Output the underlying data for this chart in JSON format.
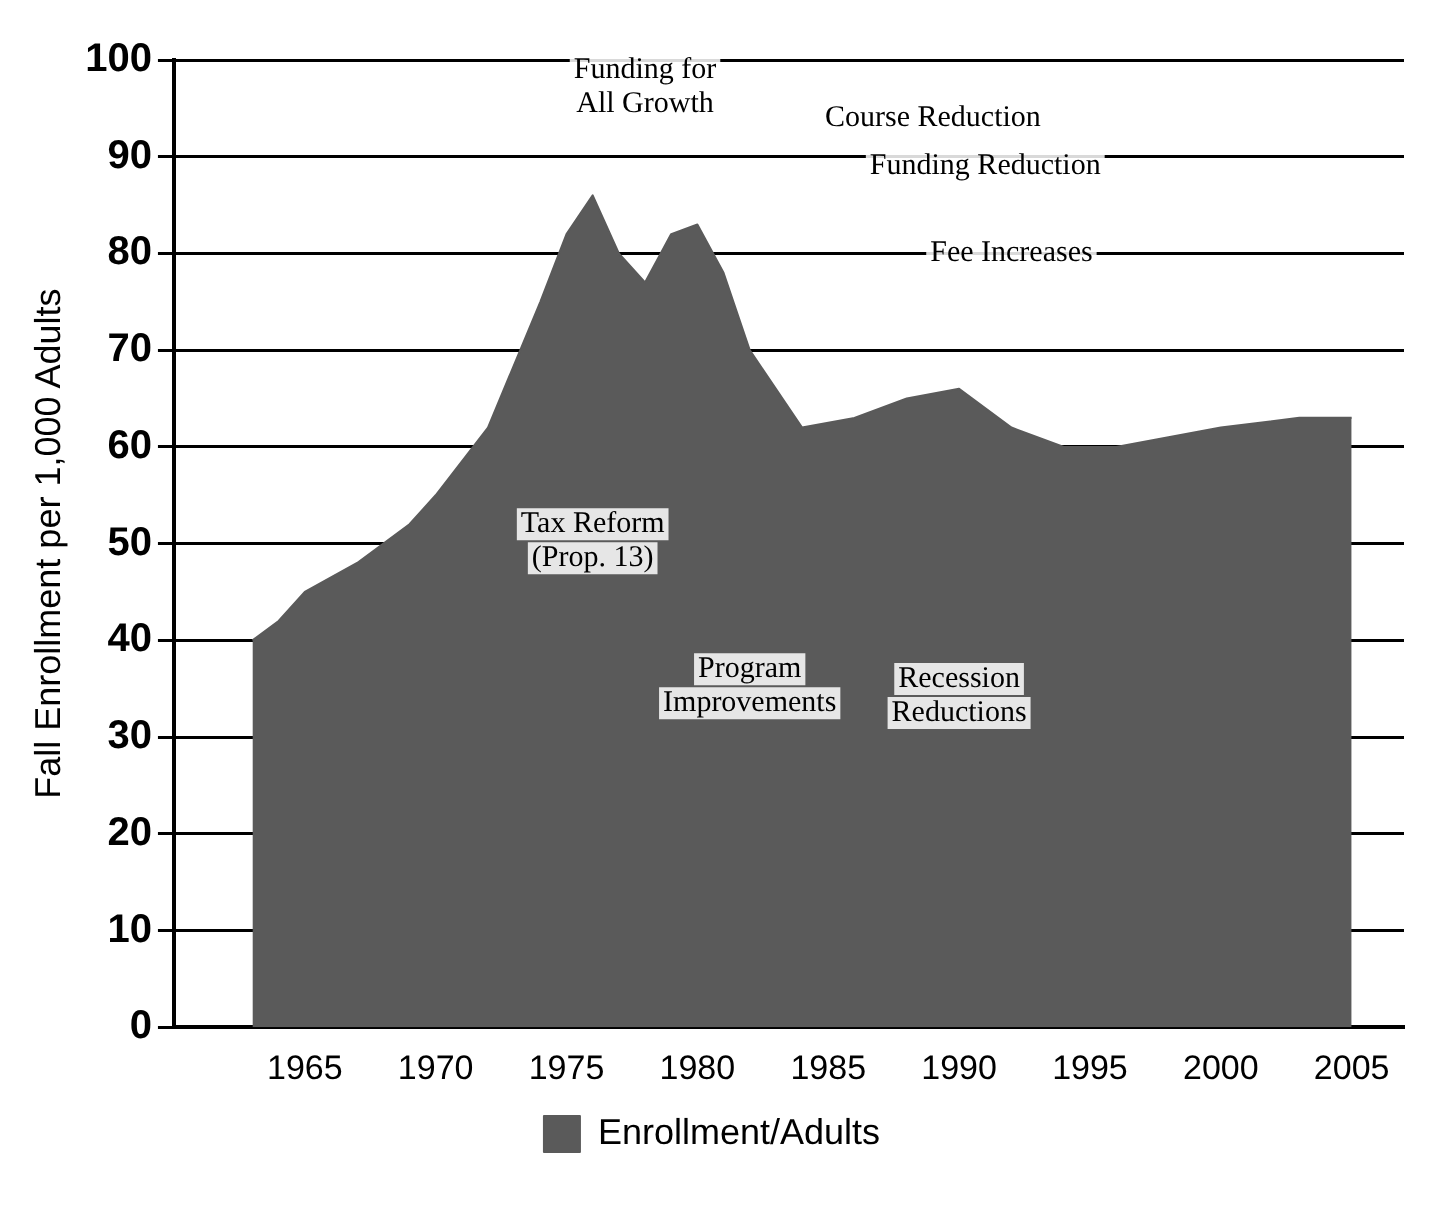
{
  "chart_data": {
    "type": "area",
    "xlabel": null,
    "ylabel": "Fall Enrollment per 1,000 Adults",
    "x": [
      1963,
      1964,
      1965,
      1967,
      1969,
      1970,
      1972,
      1974,
      1975,
      1976,
      1977,
      1978,
      1979,
      1980,
      1981,
      1982,
      1983,
      1984,
      1986,
      1988,
      1990,
      1992,
      1994,
      1996,
      1998,
      2000,
      2003,
      2005
    ],
    "series": [
      {
        "name": "Enrollment/Adults",
        "color": "#5a5a5a",
        "values": [
          40,
          42,
          45,
          48,
          52,
          55,
          62,
          75,
          82,
          86,
          80,
          77,
          82,
          83,
          78,
          70,
          66,
          62,
          63,
          65,
          66,
          62,
          60,
          60,
          61,
          62,
          63,
          63
        ]
      }
    ],
    "xlim": [
      1960,
      2007
    ],
    "xticks": [
      1965,
      1970,
      1975,
      1980,
      1985,
      1990,
      1995,
      2000,
      2005
    ],
    "ylim": [
      0,
      100
    ],
    "yticks": [
      0,
      10,
      20,
      30,
      40,
      50,
      60,
      70,
      80,
      90,
      100
    ],
    "grid": "y",
    "legend": "bottom",
    "annotations": [
      "Funding for All Growth",
      "Course Reduction",
      "Funding Reduction",
      "Fee Increases",
      "Tax Reform (Prop. 13)",
      "Program Improvements",
      "Recession Reductions"
    ]
  }
}
